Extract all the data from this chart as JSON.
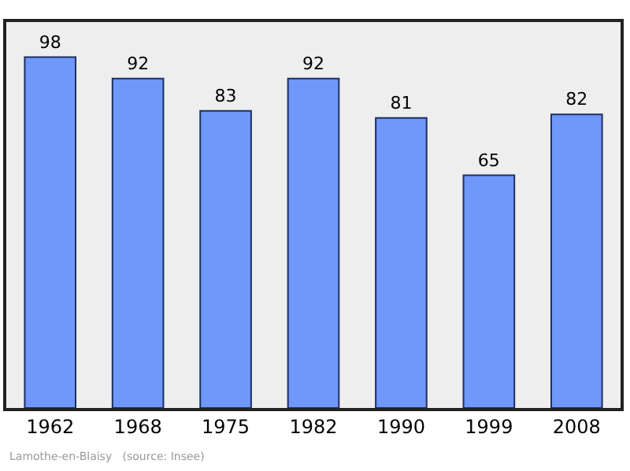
{
  "chart_data": {
    "type": "bar",
    "categories": [
      "1962",
      "1968",
      "1975",
      "1982",
      "1990",
      "1999",
      "2008"
    ],
    "values": [
      98,
      92,
      83,
      92,
      81,
      65,
      82
    ],
    "color": "#7097fa",
    "data_labels": true,
    "grid": false,
    "legend": false,
    "tick_labels": "x",
    "annotations": [
      "Lamothe-en-Blaisy   (source: Insee)"
    ]
  }
}
